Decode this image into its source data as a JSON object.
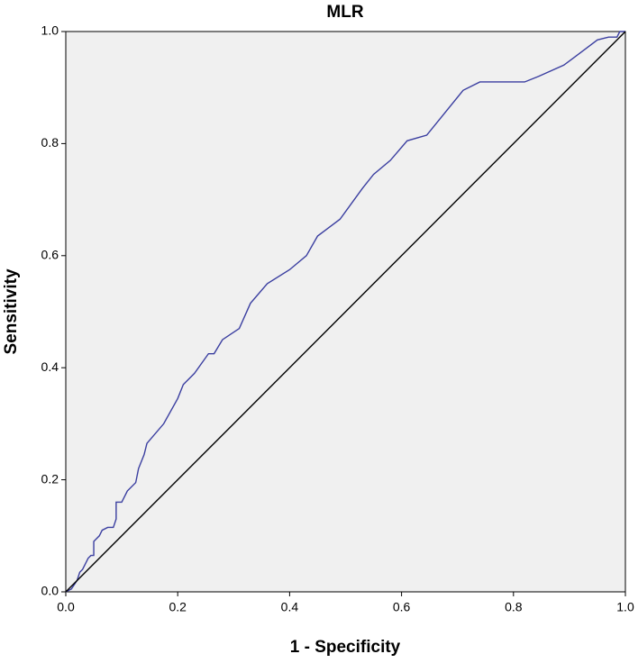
{
  "chart_data": {
    "type": "line",
    "title": "MLR",
    "x_label": "1 - Specificity",
    "y_label": "Sensitivity",
    "xlim": [
      0,
      1
    ],
    "ylim": [
      0,
      1
    ],
    "xticks": [
      {
        "value": 0,
        "label": "0.0"
      },
      0.2,
      0.4,
      0.6,
      0.8,
      {
        "value": 1,
        "label": "1.0"
      }
    ],
    "yticks": [
      {
        "value": 0,
        "label": "0.0"
      },
      0.2,
      0.4,
      0.6,
      0.8,
      {
        "value": 1,
        "label": "1.0"
      }
    ],
    "series": [
      {
        "color": "#3a3ea0",
        "x": [
          0,
          0.01,
          0.02,
          0.025,
          0.03,
          0.035,
          0.04,
          0.045,
          0.05,
          0.05,
          0.06,
          0.065,
          0.075,
          0.085,
          0.09,
          0.09,
          0.1,
          0.11,
          0.125,
          0.13,
          0.14,
          0.145,
          0.175,
          0.2,
          0.21,
          0.23,
          0.255,
          0.265,
          0.28,
          0.31,
          0.33,
          0.36,
          0.4,
          0.43,
          0.45,
          0.49,
          0.53,
          0.55,
          0.58,
          0.61,
          0.645,
          0.71,
          0.74,
          0.82,
          0.845,
          0.89,
          0.93,
          0.95,
          0.97,
          0.985,
          0.99,
          1
        ],
        "values": [
          0,
          0.005,
          0.02,
          0.035,
          0.04,
          0.05,
          0.06,
          0.065,
          0.065,
          0.09,
          0.1,
          0.11,
          0.115,
          0.115,
          0.13,
          0.16,
          0.16,
          0.18,
          0.195,
          0.22,
          0.245,
          0.265,
          0.3,
          0.345,
          0.37,
          0.39,
          0.425,
          0.425,
          0.45,
          0.47,
          0.515,
          0.55,
          0.575,
          0.6,
          0.635,
          0.665,
          0.72,
          0.745,
          0.77,
          0.805,
          0.815,
          0.895,
          0.91,
          0.91,
          0.92,
          0.94,
          0.97,
          0.985,
          0.99,
          0.99,
          1,
          1
        ]
      },
      {
        "color": "#000000",
        "x": [
          0,
          1
        ],
        "values": [
          0,
          1
        ]
      }
    ]
  }
}
